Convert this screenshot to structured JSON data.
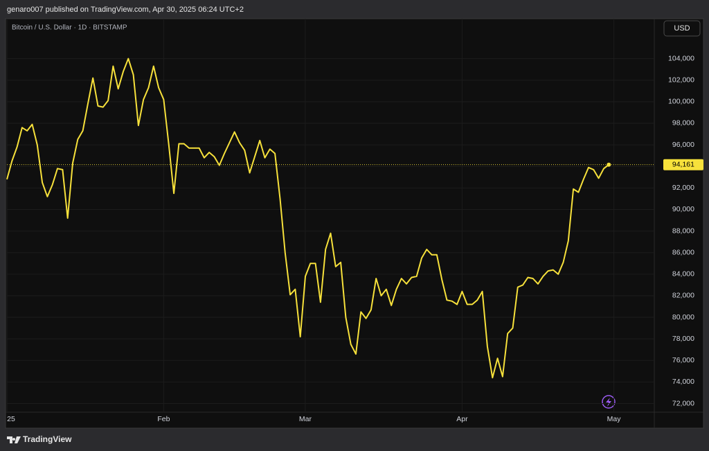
{
  "chart_data": {
    "type": "line",
    "title": "genaro007 published on TradingView.com, Apr 30, 2025 06:24 UTC+2",
    "subtitle": "Bitcoin / U.S. Dollar · 1D · BITSTAMP",
    "currency": "USD",
    "brand": "TradingView",
    "color": "#f7e13b",
    "x": [
      0,
      1,
      2,
      3,
      4,
      5,
      6,
      7,
      8,
      9,
      10,
      11,
      12,
      13,
      14,
      15,
      16,
      17,
      18,
      19,
      20,
      21,
      22,
      23,
      24,
      25,
      26,
      27,
      28,
      29,
      30,
      31,
      32,
      33,
      34,
      35,
      36,
      37,
      38,
      39,
      40,
      41,
      42,
      43,
      44,
      45,
      46,
      47,
      48,
      49,
      50,
      51,
      52,
      53,
      54,
      55,
      56,
      57,
      58,
      59,
      60,
      61,
      62,
      63,
      64,
      65,
      66,
      67,
      68,
      69,
      70,
      71,
      72,
      73,
      74,
      75,
      76,
      77,
      78,
      79,
      80,
      81,
      82,
      83,
      84,
      85,
      86,
      87,
      88,
      89,
      90,
      91,
      92,
      93,
      94,
      95,
      96,
      97,
      98,
      99,
      100,
      101,
      102,
      103,
      104,
      105,
      106,
      107,
      108,
      109,
      110,
      111,
      112,
      113,
      114,
      115,
      116,
      117,
      118,
      119
    ],
    "values": [
      92800,
      94500,
      95800,
      97600,
      97300,
      97900,
      96000,
      92500,
      91200,
      92300,
      93800,
      93700,
      89200,
      94300,
      96500,
      97300,
      99800,
      102200,
      99600,
      99500,
      100100,
      103300,
      101200,
      102800,
      104000,
      102500,
      97800,
      100200,
      101300,
      103300,
      101300,
      100200,
      96000,
      91500,
      96100,
      96100,
      95700,
      95700,
      95700,
      94800,
      95300,
      94900,
      94100,
      95200,
      96200,
      97200,
      96200,
      95500,
      93400,
      94900,
      96400,
      94800,
      95600,
      95200,
      91000,
      86000,
      82100,
      82600,
      78200,
      83800,
      85000,
      85000,
      81400,
      86300,
      87800,
      84700,
      85100,
      80000,
      77500,
      76600,
      80500,
      79900,
      80700,
      83600,
      82000,
      82600,
      81100,
      82600,
      83600,
      83100,
      83700,
      83800,
      85500,
      86300,
      85800,
      85800,
      83500,
      81600,
      81500,
      81200,
      82400,
      81200,
      81200,
      81600,
      82400,
      77300,
      74400,
      76200,
      74500,
      78500,
      79000,
      82800,
      83000,
      83700,
      83600,
      83100,
      83800,
      84300,
      84400,
      84000,
      85100,
      87100,
      91900,
      91600,
      92800,
      93900,
      93700,
      92900,
      93800,
      94161
    ],
    "last_value_label": "94,161",
    "xlim": [
      0,
      128
    ],
    "xticks": [
      {
        "value": 0,
        "label": "25"
      },
      {
        "value": 31,
        "label": "Feb"
      },
      {
        "value": 59,
        "label": "Mar"
      },
      {
        "value": 90,
        "label": "Apr"
      },
      {
        "value": 120,
        "label": "May"
      }
    ],
    "ylim": [
      71200,
      107700
    ],
    "yticks": [
      {
        "value": 72000,
        "label": "72,000"
      },
      {
        "value": 74000,
        "label": "74,000"
      },
      {
        "value": 76000,
        "label": "76,000"
      },
      {
        "value": 78000,
        "label": "78,000"
      },
      {
        "value": 80000,
        "label": "80,000"
      },
      {
        "value": 82000,
        "label": "82,000"
      },
      {
        "value": 84000,
        "label": "84,000"
      },
      {
        "value": 86000,
        "label": "86,000"
      },
      {
        "value": 88000,
        "label": "88,000"
      },
      {
        "value": 90000,
        "label": "90,000"
      },
      {
        "value": 92000,
        "label": "92,000"
      },
      {
        "value": 94000,
        "label": "94,000"
      },
      {
        "value": 96000,
        "label": "96,000"
      },
      {
        "value": 98000,
        "label": "98,000"
      },
      {
        "value": 100000,
        "label": "100,000"
      },
      {
        "value": 102000,
        "label": "102,000"
      },
      {
        "value": 104000,
        "label": "104,000"
      }
    ],
    "grid": true
  }
}
